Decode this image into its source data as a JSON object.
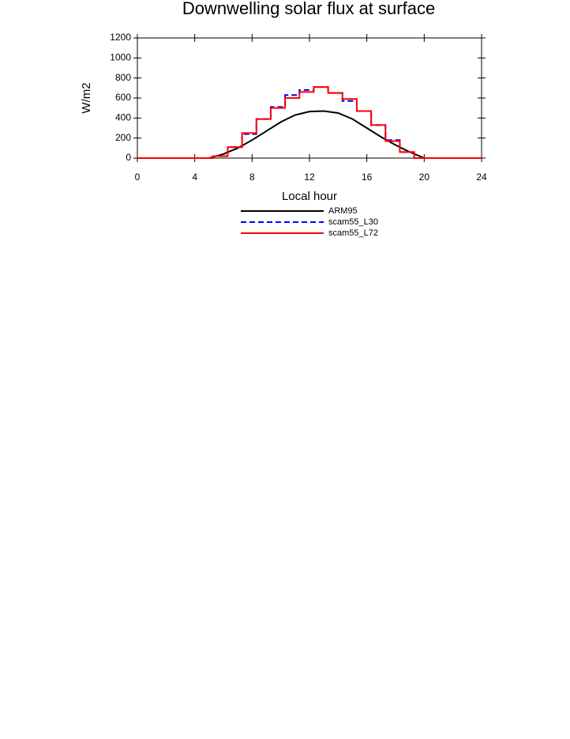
{
  "chart_data": {
    "type": "line",
    "title": "Downwelling solar flux at surface",
    "xlabel": "Local hour",
    "ylabel": "W/m2",
    "xlim": [
      0,
      24
    ],
    "xticks": [
      0,
      4,
      8,
      12,
      16,
      20,
      24
    ],
    "ylim": [
      0,
      1200
    ],
    "yticks": [
      0,
      200,
      400,
      600,
      800,
      1000,
      1200
    ],
    "series": [
      {
        "name": "ARM95",
        "color": "#000000",
        "dash": "solid",
        "step": false,
        "x": [
          0,
          5,
          6,
          7,
          8,
          9,
          10,
          11,
          12,
          13,
          14,
          15,
          16,
          17,
          18,
          19,
          20,
          24
        ],
        "values": [
          0,
          0,
          40,
          100,
          180,
          270,
          360,
          430,
          465,
          470,
          450,
          390,
          300,
          210,
          130,
          60,
          0,
          0
        ]
      },
      {
        "name": "scam55_L30",
        "color": "#0000ff",
        "dash": "dashed",
        "step": true,
        "x": [
          0,
          5.3,
          6.3,
          7.3,
          8.3,
          9.3,
          10.3,
          11.3,
          12.3,
          13.3,
          14.3,
          15.3,
          16.3,
          17.3,
          18.3,
          19.3,
          24
        ],
        "values": [
          0,
          20,
          110,
          240,
          390,
          510,
          630,
          680,
          710,
          650,
          570,
          470,
          330,
          180,
          60,
          0,
          0
        ]
      },
      {
        "name": "scam55_L72",
        "color": "#ff0000",
        "dash": "solid",
        "step": true,
        "x": [
          0,
          5.3,
          6.3,
          7.3,
          8.3,
          9.3,
          10.3,
          11.3,
          12.3,
          13.3,
          14.3,
          15.3,
          16.3,
          17.3,
          18.3,
          19.3,
          24
        ],
        "values": [
          0,
          20,
          110,
          250,
          390,
          500,
          600,
          660,
          710,
          650,
          590,
          470,
          330,
          170,
          60,
          0,
          0
        ]
      }
    ]
  }
}
